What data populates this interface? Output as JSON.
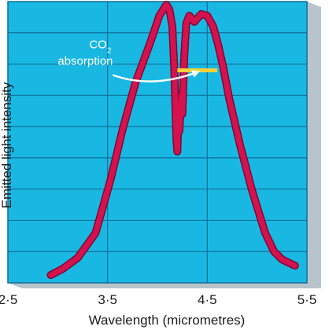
{
  "chart_data": {
    "type": "line",
    "title": "",
    "xlabel": "Wavelength (micrometres)",
    "ylabel": "Emitted light intensity",
    "xlim": [
      2.5,
      5.5
    ],
    "ylim": [
      0,
      9
    ],
    "x_ticks": [
      {
        "value": 2.5,
        "label": "2·5"
      },
      {
        "value": 3.5,
        "label": "3·5"
      },
      {
        "value": 4.5,
        "label": "4·5"
      },
      {
        "value": 5.5,
        "label": "5·5"
      }
    ],
    "y_grid_count": 9,
    "grid": true,
    "colors": {
      "background": "#19b8e3",
      "grid": "#0f6f9a",
      "shadow": "#b8c4cc",
      "curve": "#d4124e",
      "curve_edge": "#7a0a35",
      "marker": "#f2d13a"
    },
    "series": [
      {
        "x": [
          2.93,
          3.05,
          3.2,
          3.38,
          3.53,
          3.65,
          3.78,
          3.93,
          4.02,
          4.09,
          4.12,
          4.15,
          4.17,
          4.19,
          4.2,
          4.21,
          4.22,
          4.24,
          4.25,
          4.27,
          4.29,
          4.32,
          4.37,
          4.44,
          4.5,
          4.56,
          4.61,
          4.66,
          4.72,
          4.83,
          4.95,
          5.08,
          5.17,
          5.25,
          5.38
        ],
        "y": [
          0.25,
          0.45,
          0.8,
          1.6,
          3.3,
          4.9,
          6.4,
          7.7,
          8.55,
          8.9,
          8.75,
          8.2,
          6.8,
          4.6,
          4.2,
          5.2,
          4.85,
          6.0,
          5.4,
          7.3,
          8.3,
          8.55,
          8.35,
          8.6,
          8.55,
          8.2,
          7.6,
          6.9,
          5.9,
          4.4,
          2.95,
          1.6,
          1.0,
          0.75,
          0.55
        ]
      }
    ],
    "annotation": {
      "text_line1": "CO",
      "text_line1_sub": "2",
      "text_line2": "absorption",
      "band_x": [
        4.2,
        4.6
      ],
      "band_y": 6.8
    }
  }
}
